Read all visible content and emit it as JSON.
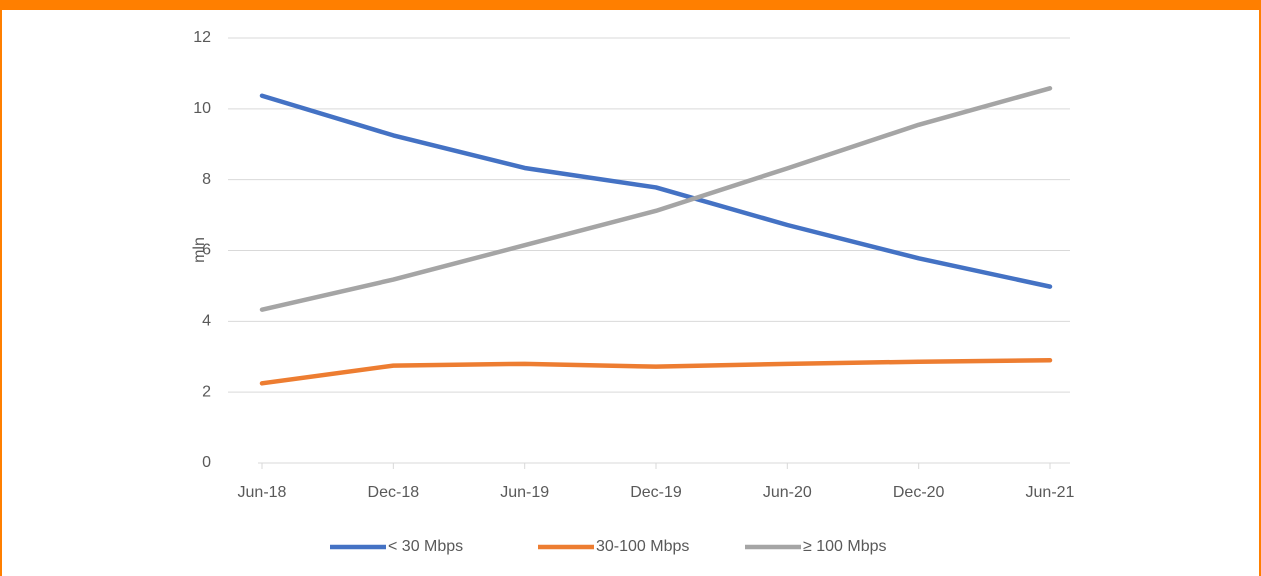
{
  "chart_data": {
    "type": "line",
    "y_label": "mln",
    "categories": [
      "Jun-18",
      "Dec-18",
      "Jun-19",
      "Dec-19",
      "Jun-20",
      "Dec-20",
      "Jun-21"
    ],
    "series": [
      {
        "name": "< 30 Mbps",
        "color": "#4472c4",
        "values": [
          10.37,
          9.25,
          8.33,
          7.78,
          6.72,
          5.78,
          4.98
        ]
      },
      {
        "name": "30-100 Mbps",
        "color": "#ed7d31",
        "values": [
          2.25,
          2.75,
          2.8,
          2.72,
          2.8,
          2.86,
          2.9
        ]
      },
      {
        "name": "≥ 100 Mbps",
        "color": "#a5a5a5",
        "values": [
          4.33,
          5.18,
          6.15,
          7.12,
          8.32,
          9.55,
          10.58
        ]
      }
    ],
    "ylim": [
      0,
      12
    ],
    "yticks": [
      0,
      2,
      4,
      6,
      8,
      10,
      12
    ],
    "grid": true,
    "legend": "bottom"
  }
}
